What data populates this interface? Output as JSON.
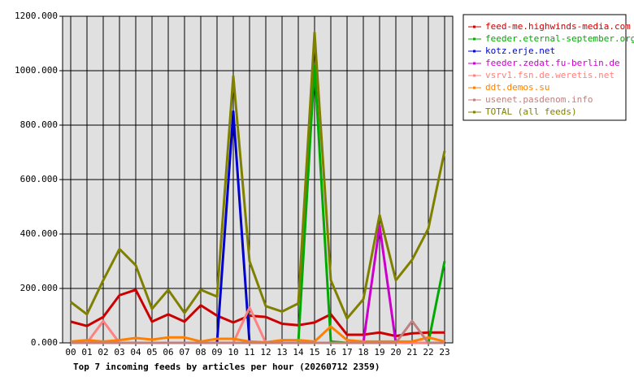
{
  "chart_data": {
    "type": "line",
    "title": "Top 7 incoming feeds by articles per hour (20260712 2359)",
    "categories": [
      "00",
      "01",
      "02",
      "03",
      "04",
      "05",
      "06",
      "07",
      "08",
      "09",
      "10",
      "11",
      "12",
      "13",
      "14",
      "15",
      "16",
      "17",
      "18",
      "19",
      "20",
      "21",
      "22",
      "23"
    ],
    "ylim": [
      0,
      1200
    ],
    "yticks": [
      {
        "value": 0,
        "label": "0.000"
      },
      {
        "value": 200,
        "label": "200.000"
      },
      {
        "value": 400,
        "label": "400.000"
      },
      {
        "value": 600,
        "label": "600.000"
      },
      {
        "value": 800,
        "label": "800.000"
      },
      {
        "value": 1000,
        "label": "1000.000"
      },
      {
        "value": 1200,
        "label": "1200.000"
      }
    ],
    "grid": true,
    "legend": "right",
    "series": [
      {
        "name": "feed-me.highwinds-media.com",
        "color": "#cc0000",
        "values": [
          78,
          62,
          95,
          175,
          195,
          78,
          105,
          78,
          138,
          100,
          75,
          100,
          95,
          70,
          65,
          75,
          105,
          30,
          30,
          38,
          25,
          35,
          38,
          38
        ]
      },
      {
        "name": "feeder.eternal-september.org",
        "color": "#00aa00",
        "values": [
          0,
          0,
          0,
          0,
          0,
          0,
          0,
          0,
          0,
          0,
          0,
          0,
          0,
          0,
          0,
          1020,
          5,
          0,
          0,
          0,
          0,
          0,
          0,
          300
        ]
      },
      {
        "name": "kotz.erje.net",
        "color": "#0000cc",
        "values": [
          0,
          0,
          0,
          0,
          0,
          0,
          0,
          0,
          0,
          0,
          850,
          0,
          0,
          0,
          0,
          0,
          0,
          0,
          0,
          0,
          0,
          0,
          0,
          0
        ]
      },
      {
        "name": "feeder.zedat.fu-berlin.de",
        "color": "#cc00cc",
        "values": [
          0,
          0,
          0,
          0,
          0,
          0,
          0,
          0,
          0,
          0,
          0,
          0,
          0,
          0,
          0,
          0,
          0,
          0,
          0,
          430,
          0,
          0,
          0,
          0
        ]
      },
      {
        "name": "vsrv1.fsn.de.weretis.net",
        "color": "#ff8080",
        "values": [
          0,
          0,
          80,
          0,
          0,
          0,
          0,
          0,
          0,
          0,
          0,
          130,
          0,
          0,
          0,
          0,
          0,
          0,
          0,
          0,
          0,
          0,
          0,
          0
        ]
      },
      {
        "name": "ddt.demos.su",
        "color": "#ff8000",
        "values": [
          5,
          10,
          5,
          10,
          18,
          12,
          20,
          20,
          5,
          15,
          15,
          5,
          2,
          10,
          10,
          5,
          60,
          10,
          5,
          5,
          5,
          5,
          20,
          5
        ]
      },
      {
        "name": "usenet.pasdenom.info",
        "color": "#c08080",
        "values": [
          0,
          0,
          0,
          0,
          0,
          0,
          0,
          0,
          0,
          0,
          0,
          0,
          0,
          0,
          0,
          0,
          0,
          0,
          0,
          0,
          0,
          80,
          0,
          0
        ]
      },
      {
        "name": "TOTAL (all feeds)",
        "color": "#808000",
        "values": [
          150,
          105,
          230,
          345,
          285,
          125,
          195,
          110,
          195,
          170,
          980,
          300,
          135,
          115,
          145,
          1140,
          230,
          90,
          160,
          470,
          230,
          305,
          420,
          705
        ]
      }
    ]
  }
}
